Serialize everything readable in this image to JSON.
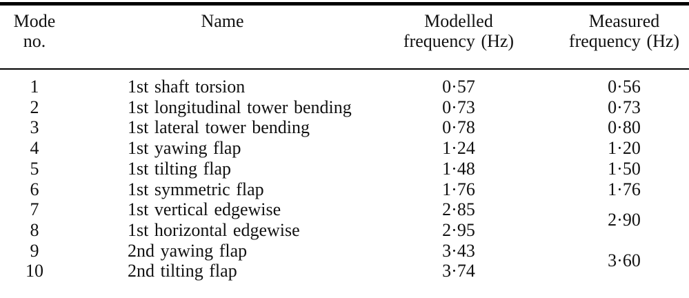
{
  "page": {
    "background_color": "#ffffff",
    "text_color": "#111111",
    "rule_color": "#000000",
    "decimal_separator": "·"
  },
  "table": {
    "columns": [
      {
        "id": "mode",
        "label": "Mode no.",
        "label_lines": [
          "Mode no."
        ]
      },
      {
        "id": "name",
        "label": "Name",
        "label_lines": [
          "Name"
        ]
      },
      {
        "id": "modelled",
        "label": "Modelled frequency (Hz)",
        "label_lines": [
          "Modelled",
          "frequency (Hz)"
        ]
      },
      {
        "id": "measured",
        "label": "Measured frequency (Hz)",
        "label_lines": [
          "Measured",
          "frequency (Hz)"
        ]
      }
    ],
    "rows": [
      {
        "mode": "1",
        "name": "1st shaft torsion",
        "modelled": "0·57",
        "measured": "0·56"
      },
      {
        "mode": "2",
        "name": "1st longitudinal tower bending",
        "modelled": "0·73",
        "measured": "0·73"
      },
      {
        "mode": "3",
        "name": "1st lateral tower bending",
        "modelled": "0·78",
        "measured": "0·80"
      },
      {
        "mode": "4",
        "name": "1st yawing flap",
        "modelled": "1·24",
        "measured": "1·20"
      },
      {
        "mode": "5",
        "name": "1st tilting flap",
        "modelled": "1·48",
        "measured": "1·50"
      },
      {
        "mode": "6",
        "name": "1st symmetric flap",
        "modelled": "1·76",
        "measured": "1·76"
      },
      {
        "mode": "7",
        "name": "1st vertical edgewise",
        "modelled": "2·85",
        "measured": "2·90",
        "measured_rowspan": 2
      },
      {
        "mode": "8",
        "name": "1st horizontal edgewise",
        "modelled": "2·95",
        "measured": null
      },
      {
        "mode": "9",
        "name": "2nd yawing flap",
        "modelled": "3·43",
        "measured": "3·60",
        "measured_rowspan": 2
      },
      {
        "mode": "10",
        "name": "2nd tilting flap",
        "modelled": "3·74",
        "measured": null
      }
    ]
  }
}
